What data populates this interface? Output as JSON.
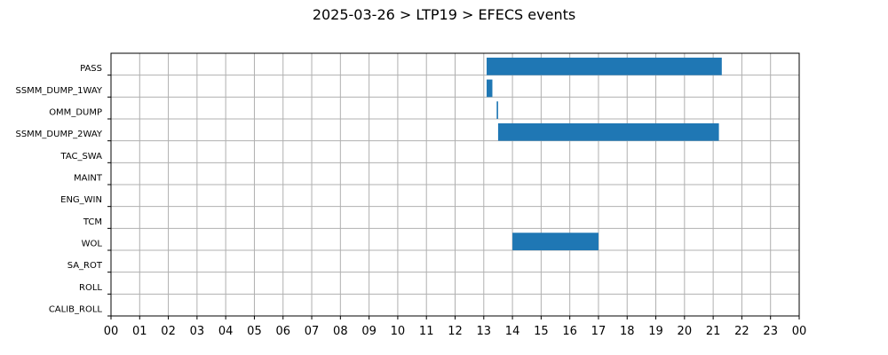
{
  "chart_data": {
    "type": "bar",
    "orientation": "horizontal-gantt",
    "title": "2025-03-26 > LTP19 > EFECS events",
    "xlabel": "",
    "ylabel": "",
    "xlim": [
      0,
      24
    ],
    "xticks": [
      "00",
      "01",
      "02",
      "03",
      "04",
      "05",
      "06",
      "07",
      "08",
      "09",
      "10",
      "11",
      "12",
      "13",
      "14",
      "15",
      "16",
      "17",
      "18",
      "19",
      "20",
      "21",
      "22",
      "23",
      "00"
    ],
    "categories": [
      "PASS",
      "SSMM_DUMP_1WAY",
      "OMM_DUMP",
      "SSMM_DUMP_2WAY",
      "TAC_SWA",
      "MAINT",
      "ENG_WIN",
      "TCM",
      "WOL",
      "SA_ROT",
      "ROLL",
      "CALIB_ROLL"
    ],
    "grid": true,
    "bar_color": "#1f77b4",
    "events": [
      {
        "category": "PASS",
        "start": 13.1,
        "end": 21.3
      },
      {
        "category": "SSMM_DUMP_1WAY",
        "start": 13.1,
        "end": 13.3
      },
      {
        "category": "OMM_DUMP",
        "start": 13.45,
        "end": 13.5
      },
      {
        "category": "SSMM_DUMP_2WAY",
        "start": 13.5,
        "end": 21.2
      },
      {
        "category": "WOL",
        "start": 14.0,
        "end": 17.0
      }
    ]
  }
}
